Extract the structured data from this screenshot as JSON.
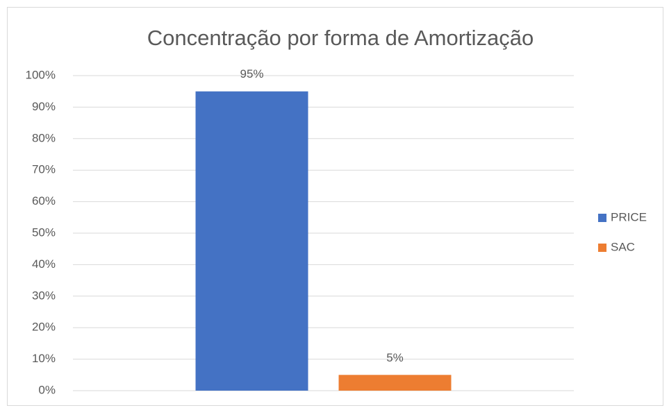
{
  "chart_data": {
    "type": "bar",
    "title": "Concentração por forma de Amortização",
    "categories": [
      null
    ],
    "series": [
      {
        "name": "PRICE",
        "color": "#4472c4",
        "values": [
          95
        ],
        "value_labels": [
          "95%"
        ]
      },
      {
        "name": "SAC",
        "color": "#ed7d31",
        "values": [
          5
        ],
        "value_labels": [
          "5%"
        ]
      }
    ],
    "ylim": [
      0,
      100
    ],
    "yticks": [
      {
        "value": 0,
        "label": "0%"
      },
      {
        "value": 10,
        "label": "10%"
      },
      {
        "value": 20,
        "label": "20%"
      },
      {
        "value": 30,
        "label": "30%"
      },
      {
        "value": 40,
        "label": "40%"
      },
      {
        "value": 50,
        "label": "50%"
      },
      {
        "value": 60,
        "label": "60%"
      },
      {
        "value": 70,
        "label": "70%"
      },
      {
        "value": 80,
        "label": "80%"
      },
      {
        "value": 90,
        "label": "90%"
      },
      {
        "value": 100,
        "label": "100%"
      }
    ],
    "grid": true,
    "legend": "right"
  }
}
